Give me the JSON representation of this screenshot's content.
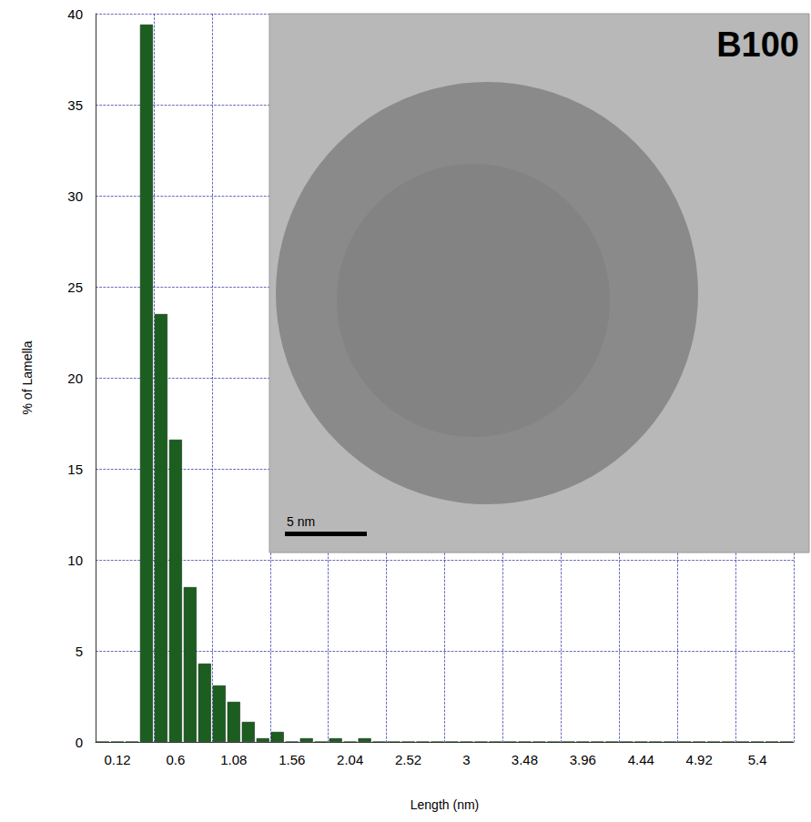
{
  "chart_data": {
    "type": "bar",
    "x_label": "Length (nm)",
    "y_label": "% of Lamella",
    "categories": [
      null,
      "0.12",
      null,
      null,
      null,
      "0.6",
      null,
      null,
      null,
      "1.08",
      null,
      null,
      null,
      "1.56",
      null,
      null,
      null,
      "2.04",
      null,
      null,
      null,
      "2.52",
      null,
      null,
      null,
      "3",
      null,
      null,
      null,
      "3.48",
      null,
      null,
      null,
      "3.96",
      null,
      null,
      null,
      "4.44",
      null,
      null,
      null,
      "4.92",
      null,
      null,
      null,
      "5.4",
      null,
      null
    ],
    "values": [
      0,
      0,
      0,
      39.4,
      23.5,
      16.6,
      8.5,
      4.3,
      3.1,
      2.2,
      1.1,
      0.2,
      0.55,
      0,
      0.2,
      0,
      0.2,
      0,
      0.2,
      0,
      0,
      0,
      0,
      0,
      0,
      0,
      0,
      0,
      0,
      0,
      0,
      0,
      0,
      0,
      0,
      0,
      0,
      0,
      0,
      0,
      0,
      0,
      0,
      0,
      0,
      0,
      0,
      0
    ],
    "color": "#1b5e20",
    "ylim": [
      0,
      40
    ],
    "yticks": [
      0,
      5,
      10,
      15,
      20,
      25,
      30,
      35,
      40
    ],
    "grid": true,
    "annotations": [
      "B100",
      "5 nm"
    ]
  }
}
